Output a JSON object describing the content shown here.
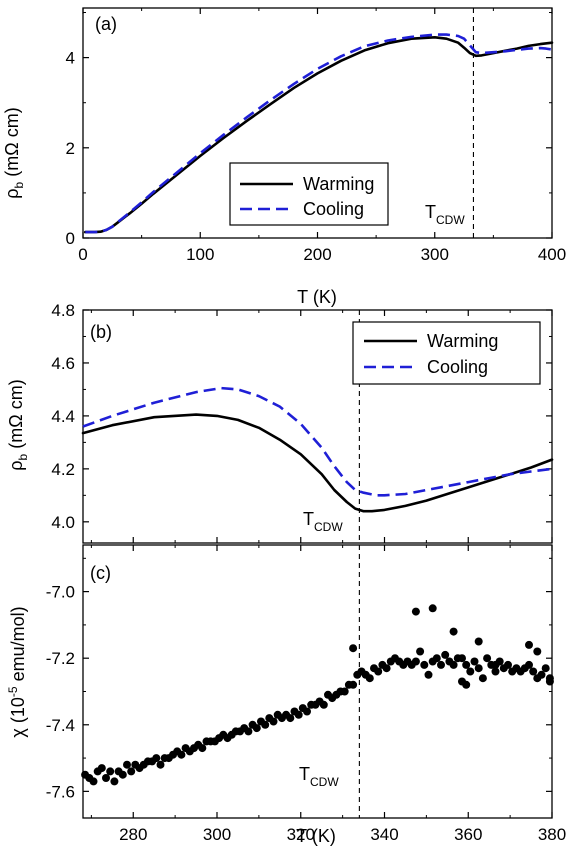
{
  "chart_data": [
    {
      "panel_label": "(a)",
      "type": "line",
      "xlabel": "T (K)",
      "ylabel": "ρb (mΩ cm)",
      "xlim": [
        0,
        400
      ],
      "ylim": [
        0,
        5.1
      ],
      "xticks": [
        0,
        100,
        200,
        300,
        400
      ],
      "yticks": [
        0,
        2,
        4
      ],
      "grid": false,
      "legend_position": "center-bottom",
      "tcdw_x": 333,
      "tcdw_label": "TCDW",
      "series": [
        {
          "name": "Warming",
          "color": "#000000",
          "dash": "solid",
          "x": [
            2,
            10,
            15,
            20,
            25,
            30,
            40,
            50,
            60,
            80,
            100,
            120,
            140,
            160,
            180,
            200,
            220,
            240,
            260,
            280,
            300,
            310,
            320,
            325,
            330,
            335,
            340,
            350,
            360,
            370,
            380,
            390,
            400
          ],
          "y": [
            0.13,
            0.13,
            0.14,
            0.18,
            0.25,
            0.35,
            0.55,
            0.76,
            0.98,
            1.4,
            1.82,
            2.22,
            2.6,
            2.97,
            3.33,
            3.65,
            3.93,
            4.16,
            4.32,
            4.42,
            4.45,
            4.42,
            4.33,
            4.22,
            4.1,
            4.04,
            4.05,
            4.1,
            4.15,
            4.2,
            4.26,
            4.3,
            4.33
          ]
        },
        {
          "name": "Cooling",
          "color": "#1f1fd6",
          "dash": "dashed",
          "x": [
            2,
            10,
            15,
            20,
            25,
            30,
            40,
            50,
            60,
            80,
            100,
            120,
            140,
            160,
            180,
            200,
            220,
            240,
            260,
            280,
            300,
            310,
            320,
            325,
            330,
            335,
            340,
            350,
            360,
            370,
            380,
            390,
            395,
            400
          ],
          "y": [
            0.13,
            0.13,
            0.14,
            0.18,
            0.25,
            0.36,
            0.57,
            0.79,
            1.02,
            1.45,
            1.88,
            2.29,
            2.68,
            3.06,
            3.42,
            3.75,
            4.03,
            4.25,
            4.38,
            4.46,
            4.51,
            4.51,
            4.48,
            4.42,
            4.27,
            4.12,
            4.1,
            4.12,
            4.14,
            4.17,
            4.2,
            4.21,
            4.2,
            4.18
          ]
        }
      ]
    },
    {
      "panel_label": "(b)",
      "type": "line",
      "xlabel": "",
      "ylabel": "ρb (mΩ cm)",
      "xlim": [
        268,
        380
      ],
      "ylim": [
        3.92,
        4.8
      ],
      "xticks": [
        280,
        300,
        320,
        340,
        360,
        380
      ],
      "yticks": [
        4.0,
        4.2,
        4.4,
        4.6,
        4.8
      ],
      "grid": false,
      "legend_position": "top-right",
      "tcdw_x": 334,
      "tcdw_label": "TCDW",
      "series": [
        {
          "name": "Warming",
          "color": "#000000",
          "dash": "solid",
          "x": [
            268,
            275,
            285,
            295,
            300,
            305,
            310,
            315,
            320,
            325,
            328,
            331,
            333,
            335,
            337,
            340,
            345,
            350,
            355,
            360,
            365,
            370,
            375,
            380
          ],
          "y": [
            4.335,
            4.365,
            4.395,
            4.405,
            4.4,
            4.385,
            4.355,
            4.31,
            4.255,
            4.18,
            4.12,
            4.075,
            4.05,
            4.04,
            4.04,
            4.045,
            4.06,
            4.08,
            4.105,
            4.13,
            4.155,
            4.18,
            4.205,
            4.235
          ]
        },
        {
          "name": "Cooling",
          "color": "#1f1fd6",
          "dash": "dashed",
          "x": [
            268,
            275,
            285,
            295,
            301,
            305,
            310,
            315,
            320,
            325,
            328,
            331,
            333,
            335,
            338,
            340,
            345,
            350,
            355,
            360,
            365,
            370,
            375,
            380
          ],
          "y": [
            4.36,
            4.4,
            4.45,
            4.49,
            4.505,
            4.5,
            4.475,
            4.435,
            4.37,
            4.28,
            4.21,
            4.15,
            4.12,
            4.11,
            4.1,
            4.1,
            4.105,
            4.12,
            4.135,
            4.15,
            4.165,
            4.18,
            4.19,
            4.2
          ]
        }
      ]
    },
    {
      "panel_label": "(c)",
      "type": "scatter",
      "xlabel": "T (K)",
      "ylabel": "χ (10⁻⁵ emu/mol)",
      "xlim": [
        268,
        380
      ],
      "ylim": [
        -7.68,
        -6.86
      ],
      "xticks": [
        280,
        300,
        320,
        340,
        360,
        380
      ],
      "yticks": [
        -7.6,
        -7.4,
        -7.2,
        -7.0
      ],
      "grid": false,
      "tcdw_x": 334,
      "tcdw_label": "TCDW",
      "series": [
        {
          "color": "#000000",
          "x": [
            268.5,
            269.5,
            270.5,
            271.5,
            272.5,
            273.5,
            274.5,
            275.5,
            276.5,
            277.5,
            278.5,
            279.5,
            280.5,
            281.5,
            282.5,
            283.5,
            284.5,
            285.5,
            286.5,
            287.5,
            288.5,
            289.5,
            290.5,
            291.5,
            292.5,
            293.5,
            294.5,
            295.5,
            296.5,
            297.5,
            298.5,
            299.5,
            300.5,
            301.5,
            302.5,
            303.5,
            304.5,
            305.5,
            306.5,
            307.5,
            308.5,
            309.5,
            310.5,
            311.5,
            312.5,
            313.5,
            314.5,
            315.5,
            316.5,
            317.5,
            318.5,
            319.5,
            320.5,
            321.5,
            322.5,
            323.5,
            324.5,
            325.5,
            326.5,
            327.5,
            328.5,
            329.5,
            330.5,
            331.5,
            332.5,
            333.5,
            334.5,
            335.5,
            336.5,
            337.5,
            338.5,
            339.5,
            340.5,
            341.5,
            342.5,
            343.5,
            344.5,
            345.5,
            346.5,
            347.5,
            348.5,
            349.5,
            350.5,
            351.5,
            352.5,
            353.5,
            354.5,
            355.5,
            356.5,
            357.5,
            358.5,
            359.5,
            360.5,
            361.5,
            362.5,
            363.5,
            364.5,
            365.5,
            366.5,
            367.5,
            368.5,
            369.5,
            370.5,
            371.5,
            372.5,
            373.5,
            374.5,
            375.5,
            376.5,
            377.5,
            378.5,
            379.5
          ],
          "y": [
            -7.55,
            -7.56,
            -7.57,
            -7.54,
            -7.53,
            -7.56,
            -7.54,
            -7.57,
            -7.54,
            -7.55,
            -7.52,
            -7.54,
            -7.52,
            -7.53,
            -7.52,
            -7.51,
            -7.51,
            -7.5,
            -7.52,
            -7.5,
            -7.5,
            -7.49,
            -7.48,
            -7.49,
            -7.47,
            -7.48,
            -7.47,
            -7.46,
            -7.47,
            -7.45,
            -7.45,
            -7.45,
            -7.44,
            -7.43,
            -7.44,
            -7.43,
            -7.42,
            -7.42,
            -7.41,
            -7.42,
            -7.4,
            -7.41,
            -7.39,
            -7.4,
            -7.38,
            -7.39,
            -7.37,
            -7.38,
            -7.37,
            -7.38,
            -7.36,
            -7.37,
            -7.35,
            -7.36,
            -7.34,
            -7.34,
            -7.33,
            -7.34,
            -7.31,
            -7.32,
            -7.31,
            -7.3,
            -7.3,
            -7.28,
            -7.28,
            -7.25,
            -7.24,
            -7.25,
            -7.26,
            -7.23,
            -7.24,
            -7.22,
            -7.23,
            -7.21,
            -7.2,
            -7.21,
            -7.22,
            -7.21,
            -7.22,
            -7.21,
            -7.18,
            -7.22,
            -7.25,
            -7.21,
            -7.2,
            -7.22,
            -7.19,
            -7.21,
            -7.22,
            -7.2,
            -7.2,
            -7.22,
            -7.24,
            -7.21,
            -7.23,
            -7.26,
            -7.2,
            -7.22,
            -7.24,
            -7.21,
            -7.23,
            -7.22,
            -7.24,
            -7.23,
            -7.24,
            -7.23,
            -7.22,
            -7.24,
            -7.26,
            -7.25,
            -7.23,
            -7.27
          ]
        },
        {
          "color": "#000000",
          "x": [
            332.5,
            347.5,
            351.5,
            356.5,
            358.5,
            359.5,
            362.5,
            366.5,
            374.5,
            376.5,
            379.5
          ],
          "y": [
            -7.17,
            -7.06,
            -7.05,
            -7.12,
            -7.27,
            -7.28,
            -7.15,
            -7.22,
            -7.16,
            -7.18,
            -7.26
          ]
        }
      ]
    }
  ]
}
